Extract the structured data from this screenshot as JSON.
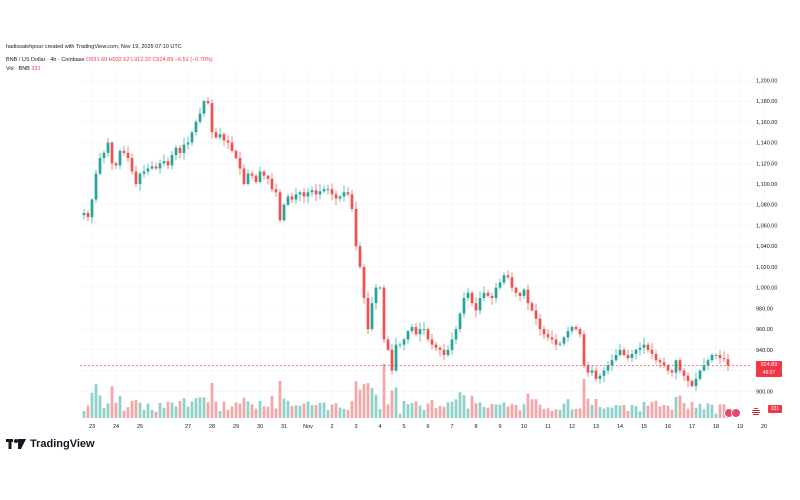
{
  "header": {
    "author_line": "hadissalehpour created with TradingView.com, Nov 19, 2025 07:10 UTC"
  },
  "symbol": {
    "name": "BNB / US Dollar · 4h · Coinbase",
    "ohlc": "O931.60 H932.62 L912.32 C924.89 −6.51 (−0.70%)"
  },
  "volume_legend": {
    "label": "Vol · BNB",
    "value": "331"
  },
  "current_price": {
    "label": "924.89",
    "countdown": "49:07",
    "volume_tag": "331"
  },
  "brand": {
    "name": "TradingView"
  },
  "colors": {
    "up": "#26a69a",
    "down": "#ef5350",
    "vol_up": "#8fd1c9",
    "vol_down": "#f4a6a6",
    "grid": "#f0f3fa",
    "axis_text": "#131722",
    "price_line": "#f23645"
  },
  "chart_data": {
    "type": "candlestick",
    "title": "",
    "xlabel": "",
    "ylabel": "",
    "ylim": [
      880,
      1210
    ],
    "y_ticks": [
      900,
      920,
      940,
      960,
      980,
      1000,
      1020,
      1040,
      1060,
      1080,
      1100,
      1120,
      1140,
      1160,
      1180,
      1200
    ],
    "y_tick_labels": [
      "900.00",
      "920.00",
      "940.00",
      "960.00",
      "980.00",
      "1,000.00",
      "1,020.00",
      "1,040.00",
      "1,060.00",
      "1,080.00",
      "1,100.00",
      "1,120.00",
      "1,140.00",
      "1,160.00",
      "1,180.00",
      "1,200.00"
    ],
    "x_ticks": [
      {
        "label": "23",
        "i": 2
      },
      {
        "label": "24",
        "i": 8
      },
      {
        "label": "25",
        "i": 14
      },
      {
        "label": "27",
        "i": 26
      },
      {
        "label": "28",
        "i": 32
      },
      {
        "label": "29",
        "i": 38
      },
      {
        "label": "30",
        "i": 44
      },
      {
        "label": "31",
        "i": 50
      },
      {
        "label": "Nov",
        "i": 56
      },
      {
        "label": "2",
        "i": 62
      },
      {
        "label": "3",
        "i": 68
      },
      {
        "label": "4",
        "i": 74
      },
      {
        "label": "5",
        "i": 80
      },
      {
        "label": "6",
        "i": 86
      },
      {
        "label": "7",
        "i": 92
      },
      {
        "label": "8",
        "i": 98
      },
      {
        "label": "9",
        "i": 104
      },
      {
        "label": "10",
        "i": 110
      },
      {
        "label": "11",
        "i": 116
      },
      {
        "label": "12",
        "i": 122
      },
      {
        "label": "13",
        "i": 128
      },
      {
        "label": "14",
        "i": 134
      },
      {
        "label": "15",
        "i": 140
      },
      {
        "label": "16",
        "i": 146
      },
      {
        "label": "17",
        "i": 152
      },
      {
        "label": "18",
        "i": 158
      },
      {
        "label": "19",
        "i": 164
      },
      {
        "label": "20",
        "i": 170
      }
    ],
    "close_path": [
      1072,
      1068,
      1085,
      1110,
      1125,
      1130,
      1140,
      1120,
      1118,
      1132,
      1130,
      1125,
      1112,
      1100,
      1110,
      1112,
      1115,
      1117,
      1115,
      1120,
      1122,
      1118,
      1128,
      1135,
      1130,
      1138,
      1140,
      1150,
      1160,
      1168,
      1180,
      1178,
      1150,
      1145,
      1148,
      1142,
      1140,
      1132,
      1125,
      1115,
      1100,
      1110,
      1108,
      1102,
      1112,
      1108,
      1105,
      1095,
      1092,
      1065,
      1080,
      1088,
      1085,
      1090,
      1092,
      1088,
      1092,
      1094,
      1090,
      1093,
      1095,
      1095,
      1090,
      1086,
      1088,
      1092,
      1090,
      1076,
      1040,
      1020,
      990,
      960,
      985,
      1000,
      1000,
      950,
      940,
      920,
      945,
      945,
      950,
      958,
      962,
      955,
      960,
      960,
      950,
      945,
      942,
      940,
      935,
      940,
      950,
      960,
      975,
      990,
      995,
      985,
      978,
      990,
      995,
      992,
      990,
      1000,
      1005,
      1012,
      1010,
      1000,
      995,
      992,
      998,
      985,
      978,
      970,
      960,
      955,
      952,
      950,
      945,
      946,
      952,
      958,
      962,
      960,
      955,
      925,
      918,
      920,
      912,
      915,
      920,
      925,
      930,
      935,
      940,
      935,
      932,
      936,
      940,
      942,
      945,
      940,
      936,
      930,
      928,
      925,
      920,
      918,
      930,
      920,
      915,
      910,
      905,
      912,
      920,
      925,
      930,
      935,
      935,
      932,
      931,
      924.89
    ]
  }
}
